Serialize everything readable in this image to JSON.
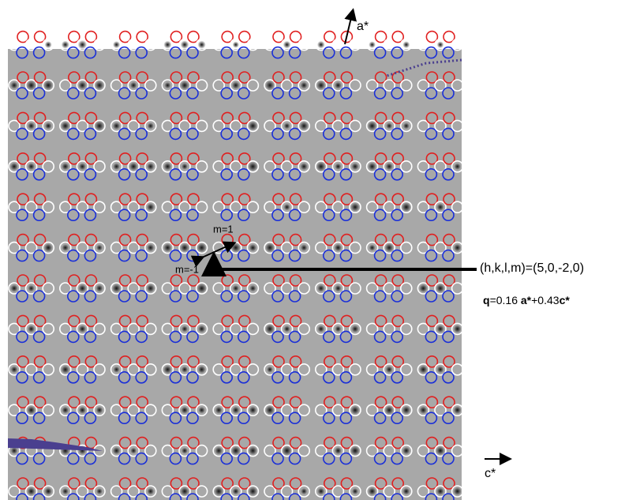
{
  "labels": {
    "a_star": "a*",
    "c_star": "c*",
    "m_plus": "m=1",
    "m_minus": "m=-1",
    "hklm": "(h,k,l,m)=(5,0,-2,0)",
    "q": {
      "q": "q",
      "eq": "=0.16 ",
      "a": "a*",
      "plus": "+0.43",
      "c": "c*"
    }
  }
}
